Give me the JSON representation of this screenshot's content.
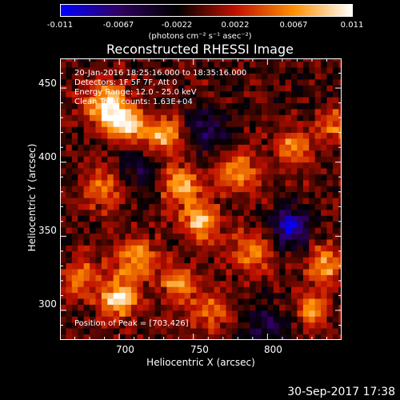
{
  "chart_data": {
    "type": "heatmap",
    "title": "Reconstructed RHESSI Image",
    "xlabel": "Heliocentric X (arcsec)",
    "ylabel": "Heliocentric Y (arcsec)",
    "xlim": [
      660,
      850
    ],
    "ylim": [
      280,
      470
    ],
    "x_ticks": [
      700,
      750,
      800
    ],
    "y_ticks": [
      300,
      350,
      400,
      450
    ],
    "annotations": [
      "20-Jan-2016 18:25:16.000 to 18:35:16.000",
      "Detectors: 1F 5F 7F, Att 0",
      "Energy Range: 12.0 - 25.0 keV",
      "Clean     Total counts: 1.63E+04"
    ],
    "peak_label": "Position of Peak = [703,426]",
    "colorbar": {
      "min": -0.011,
      "max": 0.011,
      "tick_labels": [
        "-0.011",
        "-0.0067",
        "-0.0022",
        "0.0022",
        "0.0067",
        "0.011"
      ],
      "units": "(photons cm⁻² s⁻¹ asec⁻²)",
      "colors": [
        "#0000ff",
        "#300060",
        "#000000",
        "#c01000",
        "#ff9000",
        "#ffffff"
      ]
    },
    "grid": false,
    "pixel_size_arcsec": 4,
    "sources": [
      {
        "x": 703,
        "y": 426,
        "amp": 0.011,
        "sigma": 9
      },
      {
        "x": 690,
        "y": 440,
        "amp": 0.009,
        "sigma": 10
      },
      {
        "x": 730,
        "y": 418,
        "amp": 0.009,
        "sigma": 9
      },
      {
        "x": 742,
        "y": 385,
        "amp": 0.0075,
        "sigma": 10
      },
      {
        "x": 755,
        "y": 360,
        "amp": 0.009,
        "sigma": 9
      },
      {
        "x": 780,
        "y": 395,
        "amp": 0.007,
        "sigma": 10
      },
      {
        "x": 818,
        "y": 410,
        "amp": 0.007,
        "sigma": 9
      },
      {
        "x": 690,
        "y": 382,
        "amp": 0.006,
        "sigma": 10
      },
      {
        "x": 712,
        "y": 335,
        "amp": 0.008,
        "sigma": 10
      },
      {
        "x": 700,
        "y": 308,
        "amp": 0.01,
        "sigma": 9
      },
      {
        "x": 740,
        "y": 318,
        "amp": 0.007,
        "sigma": 8
      },
      {
        "x": 675,
        "y": 322,
        "amp": 0.006,
        "sigma": 10
      },
      {
        "x": 790,
        "y": 340,
        "amp": 0.006,
        "sigma": 10
      },
      {
        "x": 838,
        "y": 330,
        "amp": 0.008,
        "sigma": 9
      },
      {
        "x": 830,
        "y": 300,
        "amp": 0.007,
        "sigma": 8
      },
      {
        "x": 760,
        "y": 300,
        "amp": 0.005,
        "sigma": 10
      },
      {
        "x": 845,
        "y": 425,
        "amp": 0.006,
        "sigma": 8
      },
      {
        "x": 815,
        "y": 356,
        "amp": -0.009,
        "sigma": 9
      },
      {
        "x": 760,
        "y": 420,
        "amp": -0.005,
        "sigma": 11
      },
      {
        "x": 712,
        "y": 395,
        "amp": -0.004,
        "sigma": 12
      },
      {
        "x": 800,
        "y": 290,
        "amp": -0.004,
        "sigma": 10
      }
    ]
  },
  "footer_date": "30-Sep-2017 17:38"
}
